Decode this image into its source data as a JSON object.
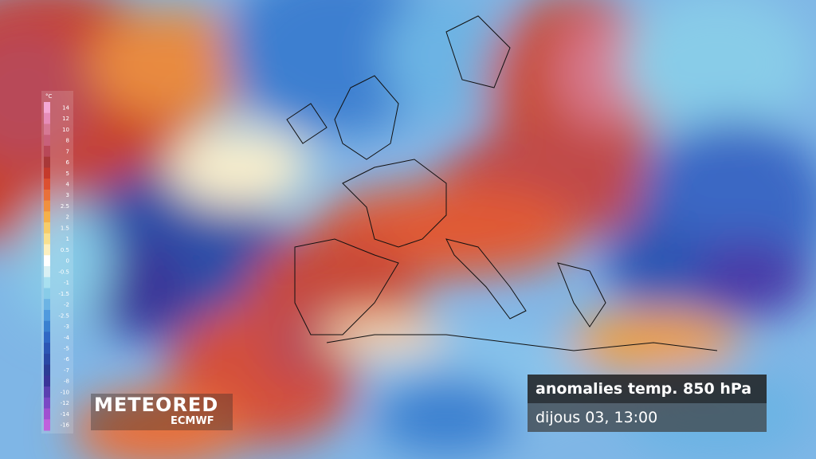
{
  "legend": {
    "unit": "°C",
    "ticks": [
      14,
      12,
      10,
      8,
      7,
      6,
      5,
      4,
      3,
      2.5,
      2,
      1.5,
      1,
      0.5,
      0,
      -0.5,
      -1,
      -1.5,
      -2,
      -2.5,
      -3,
      -4,
      -5,
      -6,
      -7,
      -8,
      -10,
      -12,
      -14,
      -16
    ],
    "colors": [
      "#f4a8d4",
      "#e68cb8",
      "#d67894",
      "#c8607a",
      "#b84858",
      "#a83838",
      "#c43a2c",
      "#dc5030",
      "#e8703a",
      "#f0903e",
      "#f4b04a",
      "#f6cc6a",
      "#f8e090",
      "#fcf0c0",
      "#ffffff",
      "#d8f0f4",
      "#a8e0f0",
      "#88cce8",
      "#6cb4e4",
      "#509ade",
      "#3a80d0",
      "#3068c4",
      "#2c56b4",
      "#2a48a4",
      "#2c3c94",
      "#3a3498",
      "#5a40b0",
      "#7a48c4",
      "#a050d0",
      "#c060dc"
    ]
  },
  "brand": {
    "name": "METEORED",
    "source": "ECMWF"
  },
  "caption": {
    "title": "anomalies temp. 850 hPa",
    "date": "dijous 03, 13:00"
  }
}
